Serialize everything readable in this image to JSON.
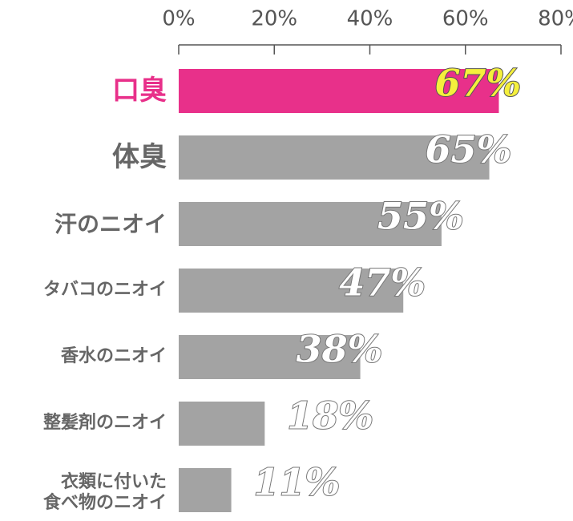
{
  "chart_data": {
    "type": "bar",
    "orientation": "horizontal",
    "categories": [
      "口臭",
      "体臭",
      "汗のニオイ",
      "タバコのニオイ",
      "香水のニオイ",
      "整髪剤のニオイ",
      "衣類に付いた\n食べ物のニオイ"
    ],
    "values": [
      67,
      65,
      55,
      47,
      38,
      18,
      11
    ],
    "value_labels": [
      "67%",
      "65%",
      "55%",
      "47%",
      "38%",
      "18%",
      "11%"
    ],
    "colors": [
      "#e8308a",
      "#a3a3a3",
      "#a3a3a3",
      "#a3a3a3",
      "#a3a3a3",
      "#a3a3a3",
      "#a3a3a3"
    ],
    "xlim": [
      0,
      80
    ],
    "xticks": [
      {
        "value": 0,
        "label": "0%"
      },
      {
        "value": 20,
        "label": "20%"
      },
      {
        "value": 40,
        "label": "40%"
      },
      {
        "value": 60,
        "label": "60%"
      },
      {
        "value": 80,
        "label": "80%"
      }
    ]
  }
}
